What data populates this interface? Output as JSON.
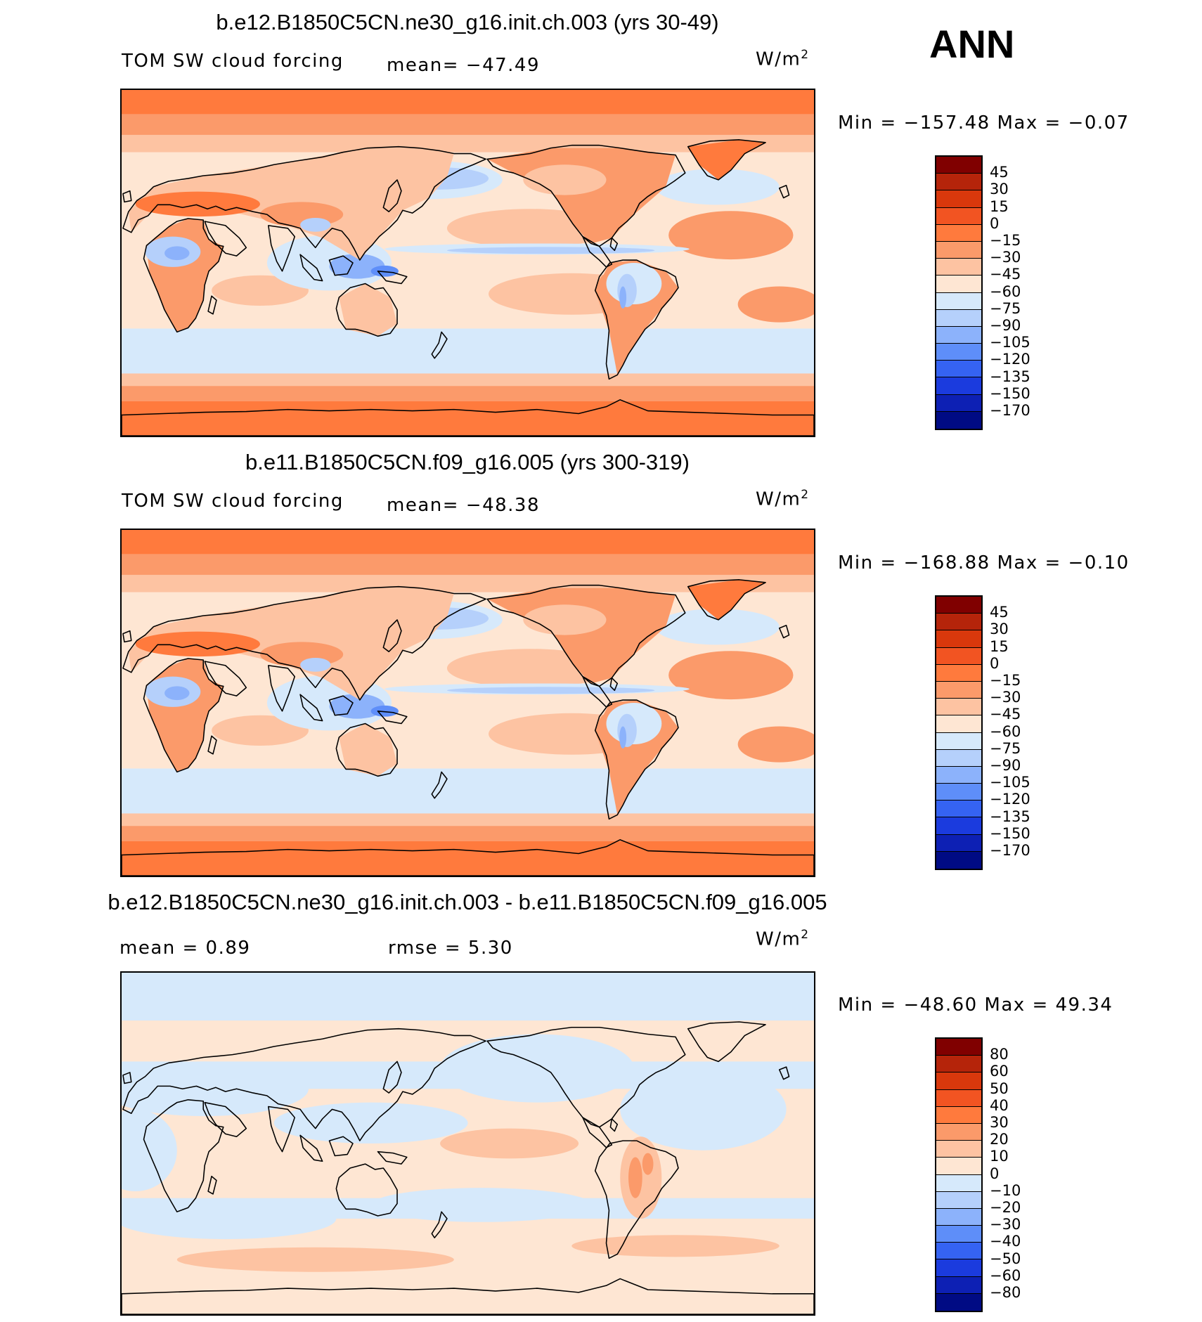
{
  "header": {
    "season": "ANN"
  },
  "panels": [
    {
      "title": "b.e12.B1850C5CN.ne30_g16.init.ch.003 (yrs 30-49)",
      "left_label": "TOM SW cloud forcing",
      "center_label": "mean= −47.49",
      "units_base": "W/m",
      "units_exp": "2",
      "minmax": "Min = −157.48 Max =  −0.07",
      "colorbar": {
        "labels": [
          "45",
          "30",
          "15",
          "0",
          "−15",
          "−30",
          "−45",
          "−60",
          "−75",
          "−90",
          "−105",
          "−120",
          "−135",
          "−150",
          "−170"
        ],
        "colors": [
          "#800000",
          "#b5240a",
          "#d9380c",
          "#f25422",
          "#ff7a3d",
          "#fb9a6a",
          "#fdc3a2",
          "#fee6d3",
          "#d6e9fb",
          "#b5d0fb",
          "#8cb2fb",
          "#5e8ef9",
          "#3563f2",
          "#1b3bde",
          "#0d20b4",
          "#000b84"
        ]
      },
      "map": {
        "variant": "control"
      }
    },
    {
      "title": "b.e11.B1850C5CN.f09_g16.005 (yrs 300-319)",
      "left_label": "TOM SW cloud forcing",
      "center_label": "mean= −48.38",
      "units_base": "W/m",
      "units_exp": "2",
      "minmax": "Min = −168.88 Max =  −0.10",
      "colorbar": {
        "labels": [
          "45",
          "30",
          "15",
          "0",
          "−15",
          "−30",
          "−45",
          "−60",
          "−75",
          "−90",
          "−105",
          "−120",
          "−135",
          "−150",
          "−170"
        ],
        "colors": [
          "#800000",
          "#b5240a",
          "#d9380c",
          "#f25422",
          "#ff7a3d",
          "#fb9a6a",
          "#fdc3a2",
          "#fee6d3",
          "#d6e9fb",
          "#b5d0fb",
          "#8cb2fb",
          "#5e8ef9",
          "#3563f2",
          "#1b3bde",
          "#0d20b4",
          "#000b84"
        ]
      },
      "map": {
        "variant": "control"
      }
    },
    {
      "title": "b.e12.B1850C5CN.ne30_g16.init.ch.003 - b.e11.B1850C5CN.f09_g16.005",
      "left_label": "mean =    0.89",
      "center_label": "rmse =    5.30",
      "units_base": "W/m",
      "units_exp": "2",
      "minmax": "Min = −48.60 Max =   49.34",
      "colorbar": {
        "labels": [
          "80",
          "60",
          "50",
          "40",
          "30",
          "20",
          "10",
          "0",
          "−10",
          "−20",
          "−30",
          "−40",
          "−50",
          "−60",
          "−80"
        ],
        "colors": [
          "#800000",
          "#b5240a",
          "#d9380c",
          "#f25422",
          "#ff7a3d",
          "#fb9a6a",
          "#fdc3a2",
          "#fee6d3",
          "#d6e9fb",
          "#b5d0fb",
          "#8cb2fb",
          "#5e8ef9",
          "#3563f2",
          "#1b3bde",
          "#0d20b4",
          "#000b84"
        ]
      },
      "map": {
        "variant": "difference"
      }
    }
  ]
}
